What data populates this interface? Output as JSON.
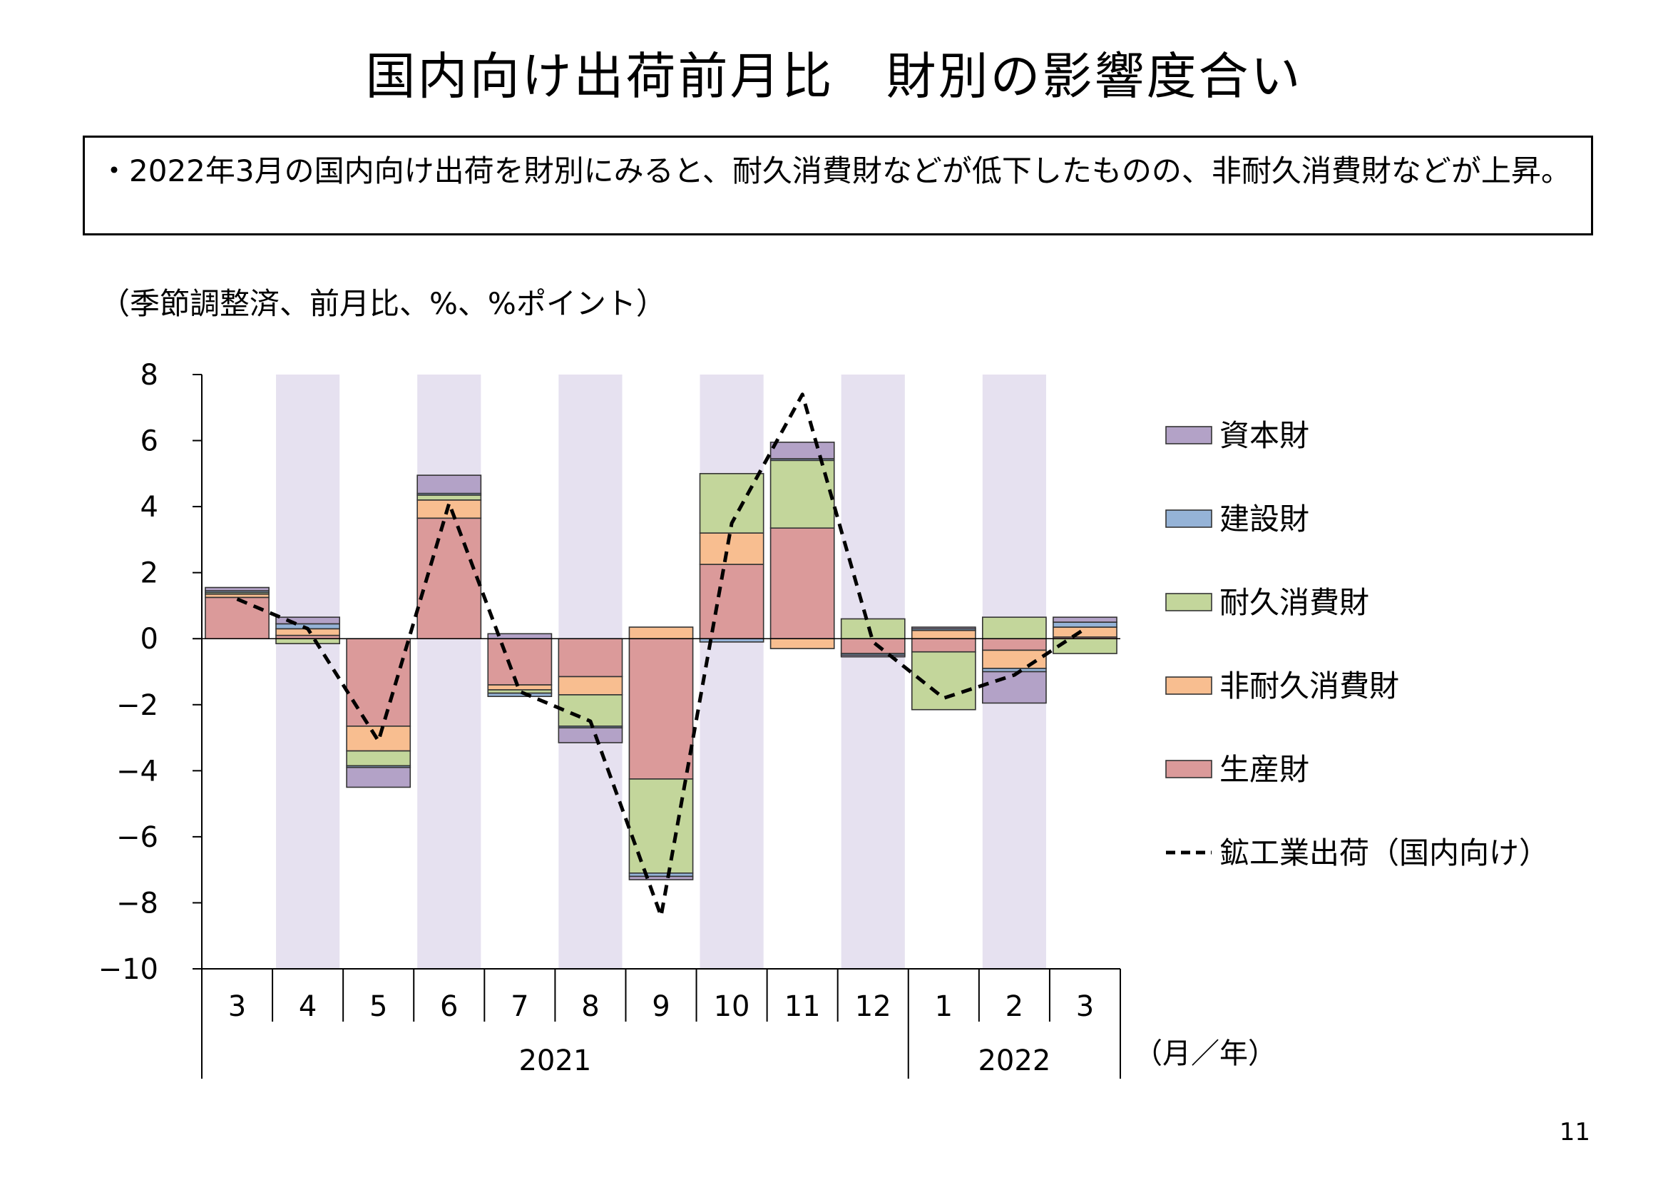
{
  "title": "国内向け出荷前月比　財別の影響度合い",
  "summary": "・2022年3月の国内向け出荷を財別にみると、耐久消費財などが低下したものの、非耐久消費財などが上昇。",
  "unit_note": "（季節調整済、前月比、%、%ポイント）",
  "page_number": "11",
  "chart_data": {
    "type": "bar",
    "stacked": true,
    "categories": [
      "3",
      "4",
      "5",
      "6",
      "7",
      "8",
      "9",
      "10",
      "11",
      "12",
      "1",
      "2",
      "3"
    ],
    "year_groups": [
      {
        "label": "2021",
        "count": 10
      },
      {
        "label": "2022",
        "count": 3
      }
    ],
    "x_unit_label": "（月／年）",
    "ylim": [
      -10,
      8
    ],
    "yticks": [
      8,
      6,
      4,
      2,
      0,
      -2,
      -4,
      -6,
      -8,
      -10
    ],
    "ytick_labels": [
      "8",
      "6",
      "4",
      "2",
      "0",
      "−2",
      "−4",
      "−6",
      "−8",
      "−10"
    ],
    "shaded_categories": [
      1,
      3,
      5,
      7,
      9,
      11
    ],
    "shade_color": "#e6e1f0",
    "series": [
      {
        "name": "生産財",
        "color": "#db9a9a",
        "values": [
          1.25,
          0.1,
          -2.65,
          3.65,
          -1.4,
          -1.15,
          -4.25,
          2.25,
          3.35,
          -0.45,
          -0.4,
          -0.35,
          0.05
        ]
      },
      {
        "name": "非耐久消費財",
        "color": "#f8be90",
        "values": [
          0.1,
          0.2,
          -0.75,
          0.55,
          -0.15,
          -0.55,
          0.35,
          0.95,
          -0.3,
          0.0,
          0.25,
          -0.55,
          0.3
        ]
      },
      {
        "name": "耐久消費財",
        "color": "#c3d69b",
        "values": [
          0.05,
          -0.15,
          -0.45,
          0.15,
          -0.1,
          -0.95,
          -2.85,
          1.8,
          2.05,
          0.6,
          -1.75,
          0.65,
          -0.45
        ]
      },
      {
        "name": "建設財",
        "color": "#95b3d7",
        "values": [
          0.05,
          0.15,
          -0.05,
          0.05,
          -0.1,
          -0.05,
          -0.1,
          -0.1,
          0.05,
          -0.05,
          0.05,
          -0.1,
          0.15
        ]
      },
      {
        "name": "資本財",
        "color": "#b3a2c7",
        "values": [
          0.1,
          0.2,
          -0.6,
          0.55,
          0.15,
          -0.45,
          -0.1,
          0.0,
          0.5,
          -0.05,
          0.05,
          -0.95,
          0.15
        ]
      }
    ],
    "line": {
      "name": "鉱工業出荷（国内向け）",
      "style": "dashed",
      "color": "#000000",
      "values": [
        1.2,
        0.3,
        -3.1,
        4.1,
        -1.6,
        -2.5,
        -8.4,
        3.5,
        7.4,
        -0.1,
        -1.8,
        -1.1,
        0.3
      ]
    },
    "legend_order": [
      "資本財",
      "建設財",
      "耐久消費財",
      "非耐久消費財",
      "生産財",
      "鉱工業出荷（国内向け）"
    ],
    "legend_position": "right",
    "grid": false
  }
}
